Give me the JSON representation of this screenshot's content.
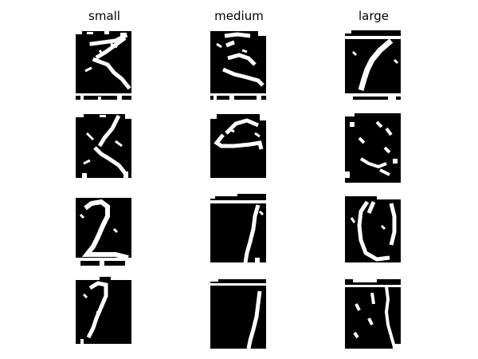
{
  "columns": [
    {
      "title": "small",
      "fg": "#ffffff",
      "bg": "#000000"
    },
    {
      "title": "medium",
      "fg": "#ffffff",
      "bg": "#000000"
    },
    {
      "title": "large",
      "fg": "#ffffff",
      "bg": "#000000"
    }
  ]
}
